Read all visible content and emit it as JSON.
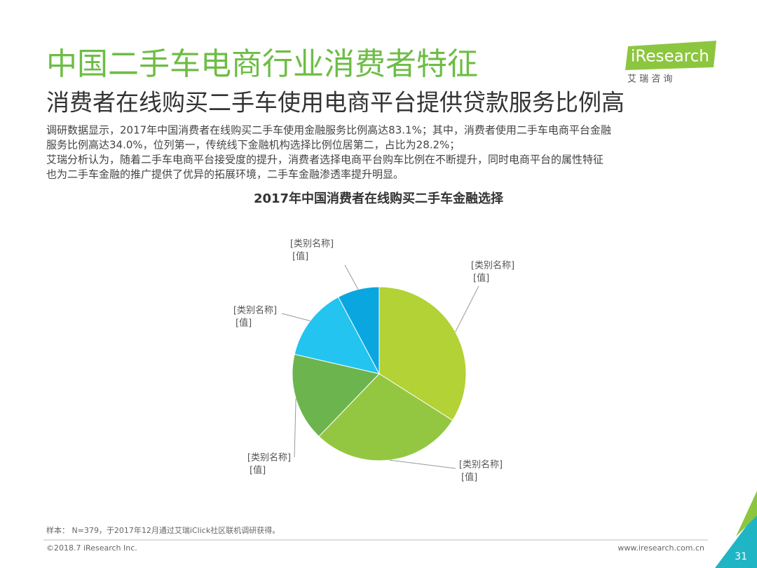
{
  "header": {
    "title": "中国二手车电商行业消费者特征",
    "subtitle": "消费者在线购买二手车使用电商平台提供贷款服务比例高",
    "logo": "iResearch",
    "logo_sub": "艾 瑞 咨 询"
  },
  "body": {
    "lines": [
      "调研数据显示，2017年中国消费者在线购买二手车使用金融服务比例高达83.1%；其中，消费者使用二手车电商平台金融",
      "服务比例高达34.0%，位列第一，传统线下金融机构选择比例位居第二，占比为28.2%；",
      "艾瑞分析认为，随着二手车电商平台接受度的提升，消费者选择电商平台购车比例在不断提升，同时电商平台的属性特征",
      "也为二手车金融的推广提供了优异的拓展环境，二手车金融渗透率提升明显。"
    ]
  },
  "chart_data": {
    "type": "pie",
    "title": "2017年中国消费者在线购买二手车金融选择",
    "categories": [
      "[类别名称]",
      "[类别名称]",
      "[类别名称]",
      "[类别名称]",
      "[类别名称]"
    ],
    "values": [
      34.0,
      28.2,
      16.4,
      13.6,
      7.8
    ],
    "value_labels": [
      "[值]",
      "[值]",
      "[值]",
      "[值]",
      "[值]"
    ],
    "colors": [
      "#b2d235",
      "#93c741",
      "#6cb44e",
      "#23c4ef",
      "#0aa6df"
    ]
  },
  "footer": {
    "note": "样本： N=379，于2017年12月通过艾瑞iClick社区联机调研获得。",
    "copyright": "©2018.7 iResearch Inc.",
    "url": "www.iresearch.com.cn",
    "page": "31"
  }
}
